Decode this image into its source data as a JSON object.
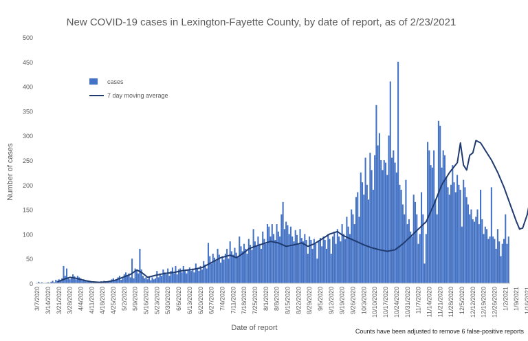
{
  "chart_data": {
    "type": "bar",
    "title": "New COVID-19 cases in Lexington-Fayette County, by date of report, as of 2/23/2021",
    "xlabel": "Date of report",
    "ylabel": "Number of cases",
    "ylim": [
      0,
      500
    ],
    "yticks": [
      0,
      50,
      100,
      150,
      200,
      250,
      300,
      350,
      400,
      450,
      500
    ],
    "grid": false,
    "legend_position": "top-left",
    "footnote": "Counts have been adjusted to remove 6 false-positive reports",
    "x_start": "2020-03-07",
    "xtick_labels": [
      "3/7/2020",
      "3/14/2020",
      "3/21/2020",
      "3/28/2020",
      "4/4/2020",
      "4/11/2020",
      "4/18/2020",
      "4/25/2020",
      "5/2/2020",
      "5/9/2020",
      "5/16/2020",
      "5/23/2020",
      "5/30/2020",
      "6/6/2020",
      "6/13/2020",
      "6/20/2020",
      "6/27/2020",
      "7/4/2020",
      "7/11/2020",
      "7/18/2020",
      "7/25/2020",
      "8/1/2020",
      "8/8/2020",
      "8/15/2020",
      "8/22/2020",
      "8/29/2020",
      "9/5/2020",
      "9/12/2020",
      "9/19/2020",
      "9/26/2020",
      "10/3/2020",
      "10/10/2020",
      "10/17/2020",
      "10/24/2020",
      "10/31/2020",
      "11/7/2020",
      "11/14/2020",
      "11/21/2020",
      "11/28/2020",
      "12/5/2020",
      "12/12/2020",
      "12/19/2020",
      "12/26/2020",
      "1/2/2021",
      "1/9/2021",
      "1/16/2021",
      "1/23/2021",
      "1/30/2021",
      "2/6/2021",
      "2/13/2021",
      "2/20/2021"
    ],
    "series": [
      {
        "name": "cases",
        "color": "#4472C4",
        "values": [
          0,
          3,
          0,
          2,
          0,
          0,
          1,
          2,
          1,
          3,
          5,
          2,
          7,
          5,
          8,
          6,
          10,
          35,
          15,
          30,
          12,
          8,
          10,
          18,
          14,
          8,
          15,
          12,
          10,
          5,
          8,
          6,
          4,
          5,
          3,
          2,
          4,
          3,
          2,
          3,
          2,
          4,
          3,
          5,
          2,
          3,
          4,
          3,
          8,
          10,
          5,
          6,
          12,
          15,
          7,
          10,
          18,
          22,
          15,
          20,
          12,
          50,
          10,
          30,
          25,
          20,
          70,
          28,
          15,
          10,
          12,
          8,
          14,
          6,
          12,
          8,
          10,
          25,
          12,
          20,
          15,
          28,
          22,
          18,
          30,
          15,
          25,
          32,
          20,
          35,
          18,
          28,
          30,
          22,
          35,
          25,
          20,
          28,
          32,
          25,
          30,
          22,
          40,
          30,
          25,
          35,
          28,
          45,
          38,
          30,
          82,
          55,
          40,
          60,
          52,
          45,
          70,
          58,
          42,
          55,
          48,
          60,
          70,
          50,
          85,
          65,
          58,
          72,
          62,
          55,
          95,
          75,
          65,
          80,
          70,
          60,
          90,
          78,
          68,
          110,
          85,
          75,
          95,
          80,
          70,
          105,
          90,
          80,
          120,
          115,
          95,
          120,
          100,
          88,
          120,
          105,
          95,
          140,
          165,
          110,
          125,
          118,
          100,
          115,
          95,
          85,
          108,
          98,
          80,
          110,
          92,
          85,
          100,
          88,
          60,
          95,
          88,
          70,
          90,
          80,
          50,
          85,
          92,
          75,
          95,
          88,
          70,
          100,
          90,
          60,
          95,
          105,
          80,
          110,
          95,
          85,
          120,
          100,
          90,
          135,
          115,
          100,
          150,
          140,
          120,
          175,
          185,
          135,
          225,
          205,
          180,
          255,
          200,
          170,
          265,
          230,
          190,
          260,
          362,
          280,
          305,
          250,
          230,
          250,
          245,
          220,
          300,
          410,
          255,
          270,
          245,
          225,
          450,
          200,
          190,
          160,
          140,
          210,
          120,
          130,
          105,
          95,
          180,
          165,
          140,
          80,
          100,
          185,
          140,
          40,
          100,
          287,
          270,
          240,
          235,
          270,
          170,
          140,
          330,
          320,
          235,
          270,
          260,
          215,
          195,
          180,
          200,
          240,
          205,
          185,
          220,
          200,
          190,
          115,
          210,
          195,
          175,
          160,
          140,
          150,
          130,
          125,
          135,
          150,
          120,
          190,
          130,
          100,
          115,
          110,
          90,
          95,
          195,
          95,
          90,
          70,
          110,
          85,
          55,
          80,
          90,
          140,
          80,
          95
        ]
      },
      {
        "name": "7 day moving average",
        "color": "#1F3A6E",
        "points": [
          [
            13,
            3
          ],
          [
            17,
            8
          ],
          [
            21,
            12
          ],
          [
            25,
            10
          ],
          [
            30,
            6
          ],
          [
            35,
            3
          ],
          [
            40,
            2
          ],
          [
            45,
            3
          ],
          [
            50,
            6
          ],
          [
            55,
            12
          ],
          [
            60,
            18
          ],
          [
            64,
            27
          ],
          [
            67,
            22
          ],
          [
            71,
            12
          ],
          [
            76,
            16
          ],
          [
            82,
            20
          ],
          [
            88,
            22
          ],
          [
            94,
            26
          ],
          [
            100,
            28
          ],
          [
            106,
            32
          ],
          [
            112,
            42
          ],
          [
            118,
            52
          ],
          [
            124,
            57
          ],
          [
            128,
            52
          ],
          [
            132,
            60
          ],
          [
            136,
            70
          ],
          [
            140,
            75
          ],
          [
            145,
            80
          ],
          [
            150,
            85
          ],
          [
            155,
            82
          ],
          [
            160,
            75
          ],
          [
            165,
            78
          ],
          [
            170,
            82
          ],
          [
            174,
            75
          ],
          [
            178,
            80
          ],
          [
            183,
            90
          ],
          [
            188,
            100
          ],
          [
            193,
            105
          ],
          [
            196,
            98
          ],
          [
            200,
            92
          ],
          [
            205,
            85
          ],
          [
            210,
            78
          ],
          [
            215,
            72
          ],
          [
            220,
            68
          ],
          [
            225,
            65
          ],
          [
            230,
            68
          ],
          [
            235,
            80
          ],
          [
            240,
            95
          ],
          [
            245,
            110
          ],
          [
            250,
            125
          ],
          [
            255,
            160
          ],
          [
            260,
            200
          ],
          [
            265,
            225
          ],
          [
            270,
            245
          ],
          [
            272,
            285
          ],
          [
            274,
            240
          ],
          [
            276,
            230
          ],
          [
            278,
            260
          ],
          [
            280,
            265
          ],
          [
            282,
            290
          ],
          [
            285,
            285
          ],
          [
            288,
            270
          ],
          [
            292,
            250
          ],
          [
            296,
            225
          ],
          [
            300,
            195
          ],
          [
            304,
            160
          ],
          [
            308,
            125
          ],
          [
            310,
            110
          ],
          [
            312,
            112
          ],
          [
            315,
            140
          ],
          [
            318,
            190
          ],
          [
            321,
            235
          ],
          [
            324,
            250
          ],
          [
            326,
            270
          ],
          [
            328,
            260
          ],
          [
            331,
            225
          ],
          [
            334,
            205
          ],
          [
            337,
            200
          ],
          [
            340,
            195
          ],
          [
            343,
            200
          ],
          [
            346,
            195
          ],
          [
            349,
            180
          ],
          [
            352,
            160
          ],
          [
            355,
            145
          ],
          [
            358,
            130
          ],
          [
            361,
            120
          ],
          [
            364,
            115
          ],
          [
            367,
            105
          ],
          [
            370,
            95
          ],
          [
            373,
            90
          ],
          [
            376,
            85
          ],
          [
            379,
            88
          ],
          [
            381,
            83
          ]
        ]
      }
    ]
  }
}
